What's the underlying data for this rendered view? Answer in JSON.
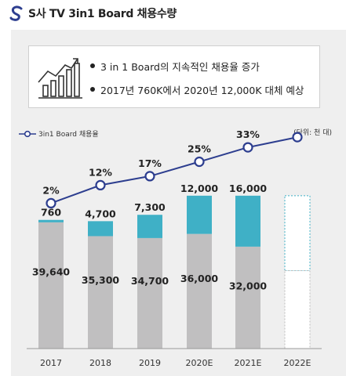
{
  "header": {
    "title": "S사 TV 3in1 Board 채용수량",
    "logo_icon": "s-logo-icon"
  },
  "summary": {
    "icon": "growth-chart-icon",
    "bullets": [
      "3 in 1 Board의 지속적인 채용율 증가",
      "2017년 760K에서 2020년 12,000K 대체 예상"
    ]
  },
  "chart_data": {
    "type": "bar",
    "categories": [
      "2017",
      "2018",
      "2019",
      "2020E",
      "2021E",
      "2022E"
    ],
    "series": [
      {
        "values": [
          39640,
          35300,
          34700,
          36000,
          32000,
          null
        ],
        "color": "#c0bfc0"
      },
      {
        "name": "3in1 Board",
        "values": [
          760,
          4700,
          7300,
          12000,
          16000,
          null
        ],
        "color": "#3fb0c6"
      }
    ],
    "line_series": {
      "name": "3in1 Board 채용율",
      "values": [
        2,
        12,
        17,
        25,
        33,
        null
      ],
      "labels": [
        "2%",
        "12%",
        "17%",
        "25%",
        "33%",
        ""
      ],
      "color": "#2d3e8f"
    },
    "projection": {
      "category": "2022E",
      "style": "dashed-outline"
    },
    "legend": {
      "label": "3in1 Board 채용율",
      "placement": "top-left"
    },
    "unit_label": "(단위: 천 대)",
    "stack_labels": {
      "bottom": [
        "39,640",
        "35,300",
        "34,700",
        "36,000",
        "32,000",
        ""
      ],
      "top": [
        "760",
        "4,700",
        "7,300",
        "12,000",
        "16,000",
        ""
      ]
    },
    "grid": false
  },
  "colors": {
    "bar_gray": "#c0bfc0",
    "bar_teal": "#3fb0c6",
    "line_navy": "#2d3e8f",
    "panel_bg": "#efefef"
  }
}
